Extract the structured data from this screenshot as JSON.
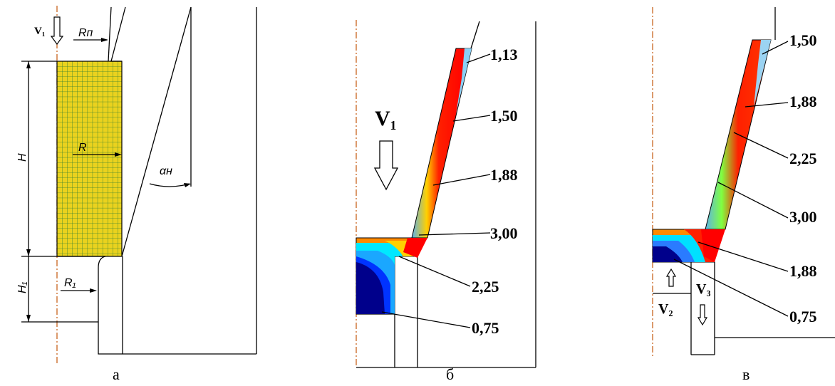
{
  "panel_a": {
    "caption": "а",
    "v1": "V₁",
    "r_p": "Rп",
    "r": "R",
    "h": "H",
    "h1": "H₁",
    "r1": "R₁",
    "alpha": "αн",
    "mesh_color": "#ead21e",
    "mesh_line_color": "#2e7d32"
  },
  "panel_b": {
    "caption": "б",
    "v1": "V₁",
    "levels": [
      "1,13",
      "1,50",
      "1,88",
      "3,00",
      "2,25",
      "0,75"
    ]
  },
  "panel_c": {
    "caption": "в",
    "v2": "V₂",
    "v3": "V₃",
    "levels": [
      "1,50",
      "1,88",
      "2,25",
      "3,00",
      "1,88",
      "0,75"
    ]
  },
  "colors": {
    "low": "#00008b",
    "mid": "#00e0ff",
    "high": "#ff0000",
    "axis": "#c8641e"
  }
}
